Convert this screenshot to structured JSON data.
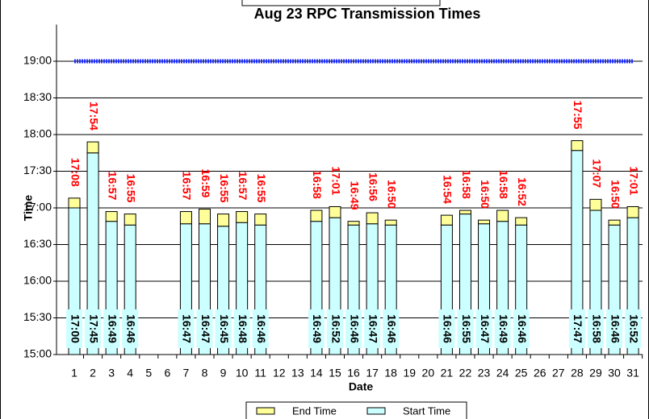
{
  "chart_data": {
    "type": "floating_bar",
    "title": "Aug 23 RPC Transmission Times",
    "x_label": "Date",
    "y_label": "Time",
    "categories": [
      1,
      2,
      3,
      4,
      5,
      6,
      7,
      8,
      9,
      10,
      11,
      12,
      13,
      14,
      15,
      16,
      17,
      18,
      19,
      20,
      21,
      22,
      23,
      24,
      25,
      26,
      27,
      28,
      29,
      30,
      31
    ],
    "series": [
      {
        "name": "Start Time",
        "color": "#ccffff",
        "label_color": "#000000",
        "values": [
          1020,
          1065,
          1009,
          1006,
          null,
          null,
          1007,
          1007,
          1005,
          1008,
          1006,
          null,
          null,
          1009,
          1012,
          1006,
          1007,
          1006,
          null,
          null,
          1006,
          1015,
          1007,
          1009,
          1006,
          null,
          null,
          1067,
          1018,
          1006,
          1012
        ],
        "value_labels": [
          "17:00",
          "17:45",
          "16:49",
          "16:46",
          null,
          null,
          "16:47",
          "16:47",
          "16:45",
          "16:48",
          "16:46",
          null,
          null,
          "16:49",
          "16:52",
          "16:46",
          "16:47",
          "16:46",
          null,
          null,
          "16:46",
          "16:55",
          "16:47",
          "16:49",
          "16:46",
          null,
          null,
          "17:47",
          "16:58",
          "16:46",
          "16:52"
        ]
      },
      {
        "name": "End Time",
        "color": "#ffff99",
        "label_color": "#ff0000",
        "values": [
          1028,
          1074,
          1017,
          1015,
          null,
          null,
          1017,
          1019,
          1015,
          1017,
          1015,
          null,
          null,
          1018,
          1021,
          1009,
          1016,
          1010,
          null,
          null,
          1014,
          1018,
          1010,
          1018,
          1012,
          null,
          null,
          1075,
          1027,
          1010,
          1021
        ],
        "value_labels": [
          "17:08",
          "17:54",
          "16:57",
          "16:55",
          null,
          null,
          "16:57",
          "16:59",
          "16:55",
          "16:57",
          "16:55",
          null,
          null,
          "16:58",
          "17:01",
          "16:49",
          "16:56",
          "16:50",
          null,
          null,
          "16:54",
          "16:58",
          "16:50",
          "16:58",
          "16:52",
          null,
          null,
          "17:55",
          "17:07",
          "16:50",
          "17:01"
        ]
      }
    ],
    "reference_line": {
      "value": 1140,
      "color": "#1f2fff"
    },
    "ylim": [
      900,
      1170
    ],
    "yticks": [
      {
        "value": 900,
        "label": "15:00"
      },
      {
        "value": 930,
        "label": "15:30"
      },
      {
        "value": 960,
        "label": "16:00"
      },
      {
        "value": 990,
        "label": "16:30"
      },
      {
        "value": 1020,
        "label": "17:00"
      },
      {
        "value": 1050,
        "label": "17:30"
      },
      {
        "value": 1080,
        "label": "18:00"
      },
      {
        "value": 1110,
        "label": "18:30"
      },
      {
        "value": 1140,
        "label": "19:00"
      }
    ],
    "grid": true
  }
}
